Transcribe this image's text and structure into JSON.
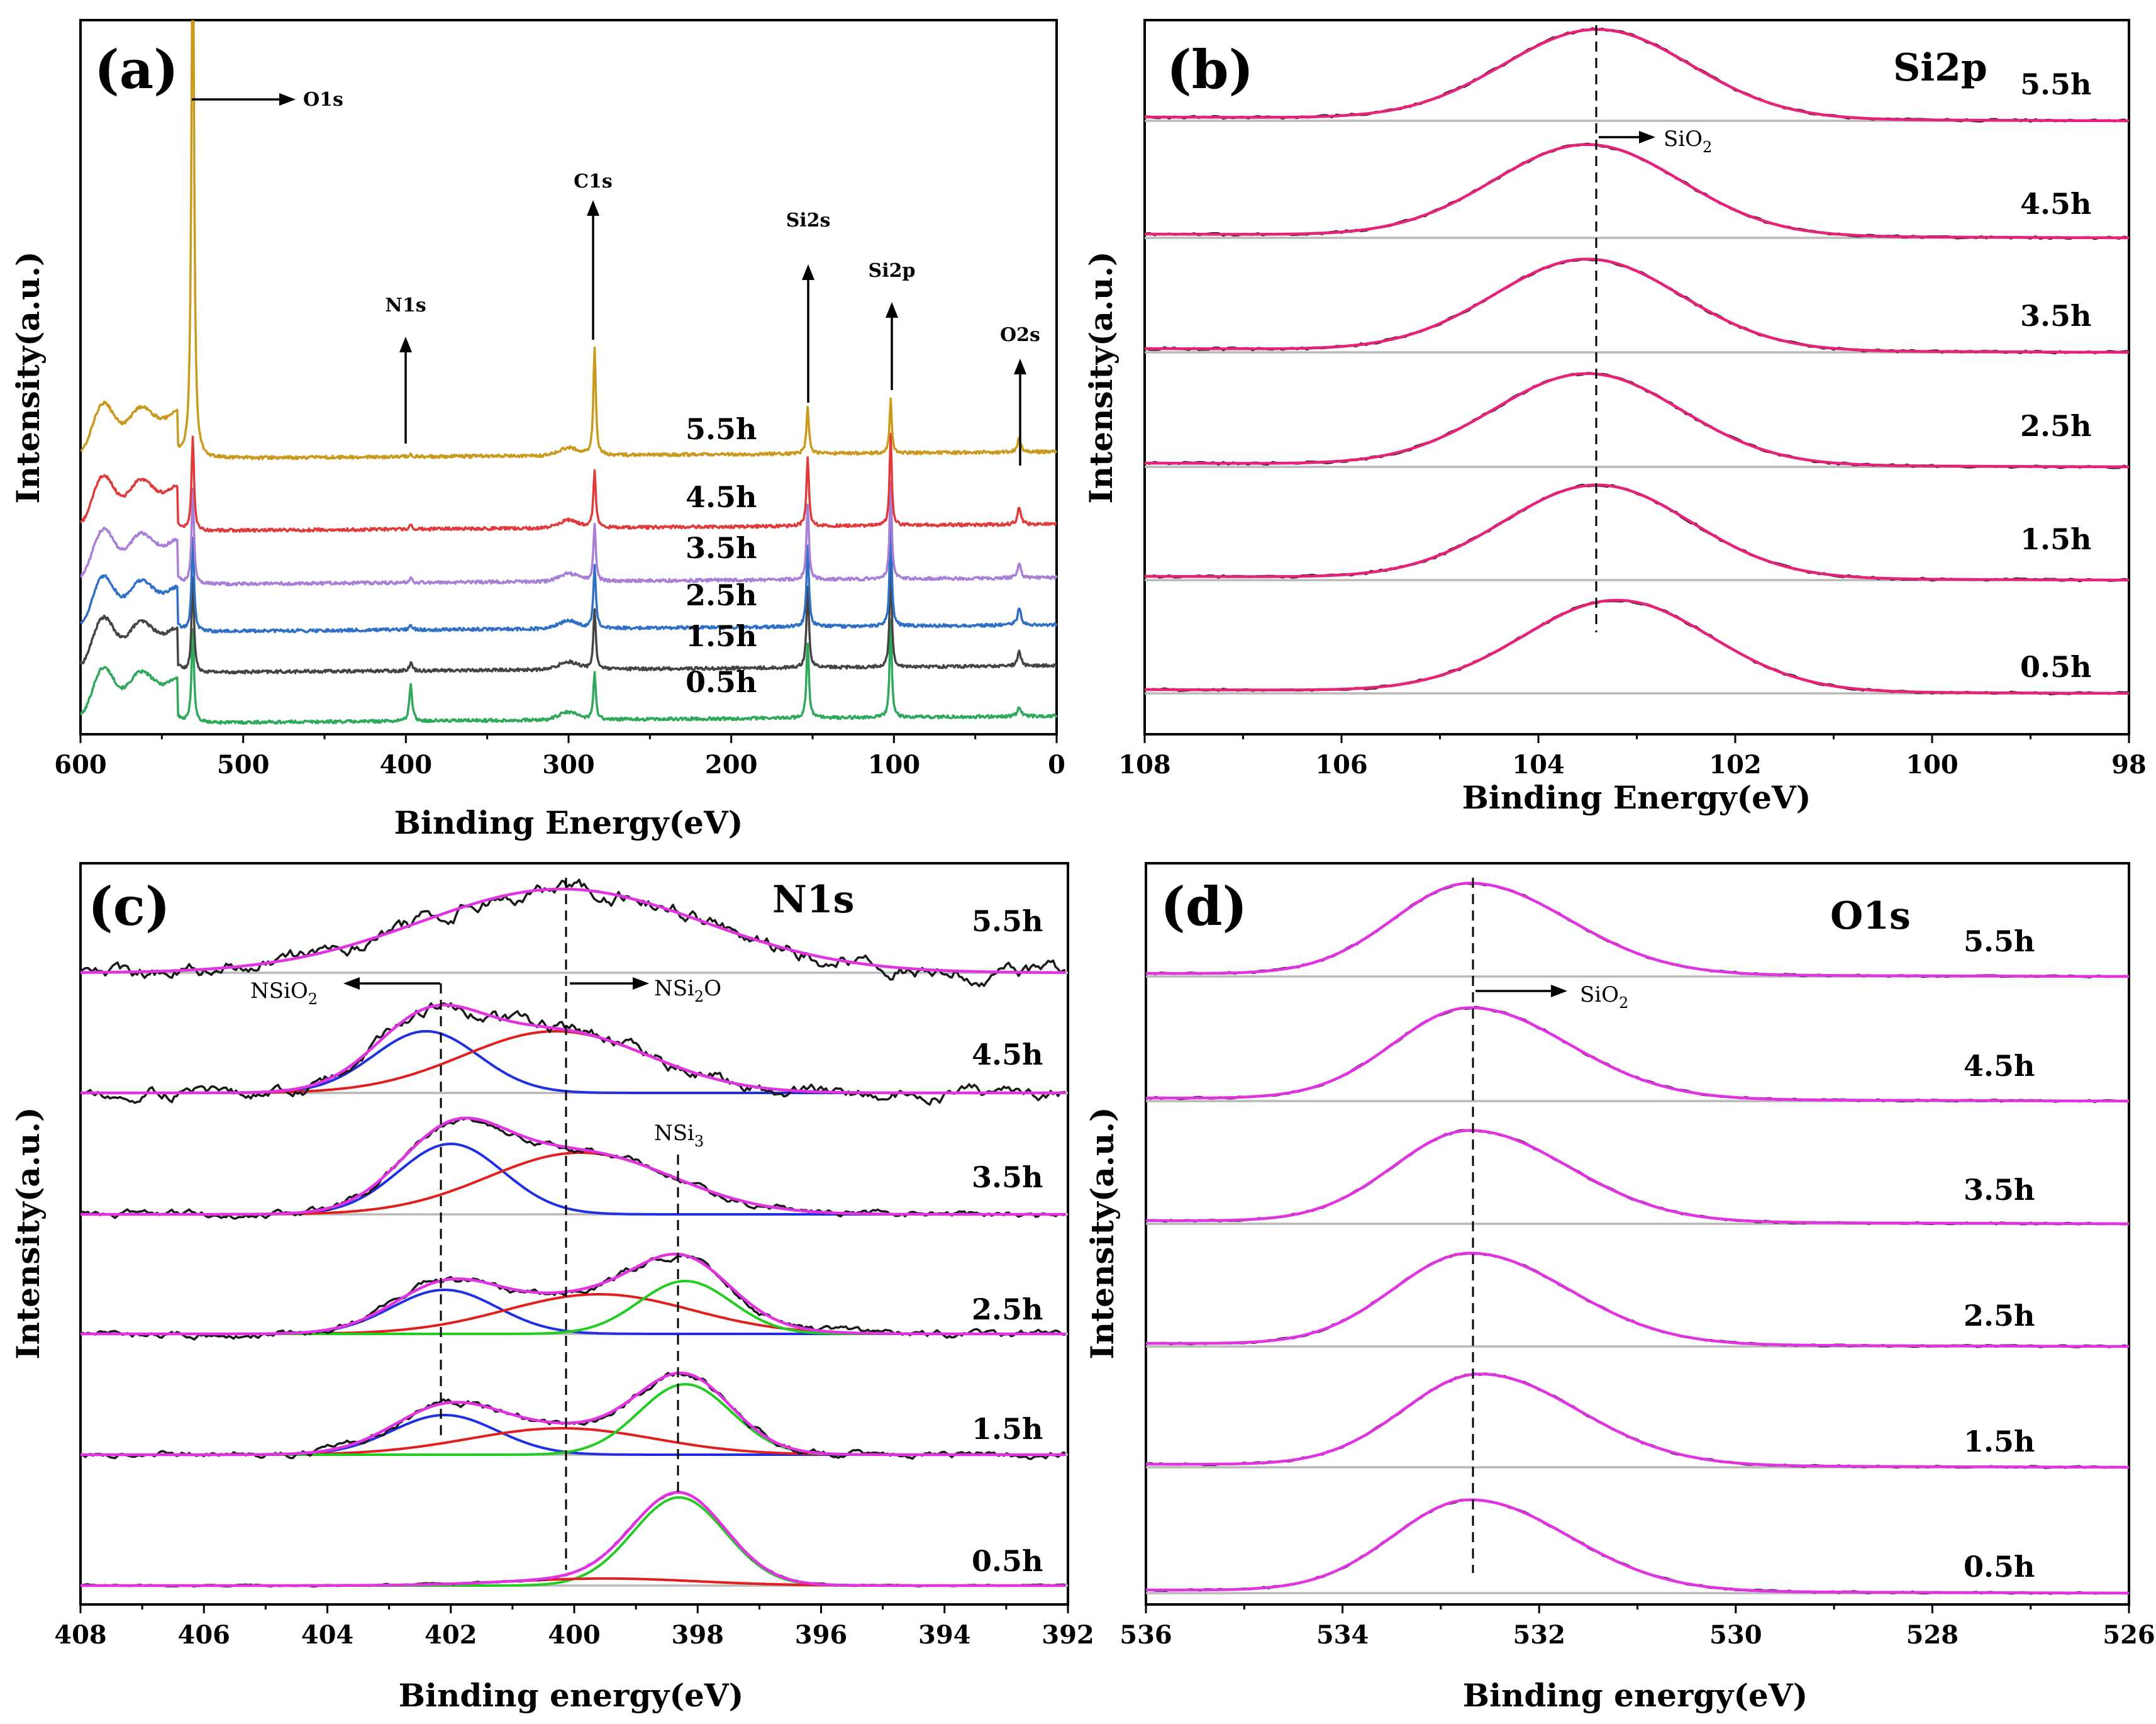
{
  "chart_data": [
    {
      "id": "a",
      "type": "line",
      "panel_label": "(a)",
      "xlabel": "Binding Energy(eV)",
      "ylabel": "Intensity(a.u.)",
      "xlim": [
        600,
        0
      ],
      "x_ticks": [
        "600",
        "500",
        "400",
        "300",
        "200",
        "100",
        "0"
      ],
      "series": [
        {
          "name": "0.5h",
          "color": "#2ea85a"
        },
        {
          "name": "1.5h",
          "color": "#444444"
        },
        {
          "name": "2.5h",
          "color": "#2f6fc6"
        },
        {
          "name": "3.5h",
          "color": "#a87ed6"
        },
        {
          "name": "4.5h",
          "color": "#e03a3a"
        },
        {
          "name": "5.5h",
          "color": "#c99a1e"
        }
      ],
      "peaks": [
        {
          "name": "O1s",
          "x": 531
        },
        {
          "name": "N1s",
          "x": 397
        },
        {
          "name": "C1s",
          "x": 284
        },
        {
          "name": "Si2s",
          "x": 153
        },
        {
          "name": "Si2p",
          "x": 102
        },
        {
          "name": "O2s",
          "x": 23
        }
      ],
      "annotations": [
        "O1s",
        "N1s",
        "C1s",
        "Si2s",
        "Si2p",
        "O2s"
      ]
    },
    {
      "id": "b",
      "type": "line",
      "panel_label": "(b)",
      "title": "Si2p",
      "xlabel": "Binding Energy(eV)",
      "ylabel": "Intensity(a.u.)",
      "xlim": [
        108,
        98
      ],
      "x_ticks": [
        "108",
        "106",
        "104",
        "102",
        "100",
        "98"
      ],
      "peak_center_ev": 103.4,
      "series": [
        {
          "name": "0.5h",
          "center": 103.2
        },
        {
          "name": "1.5h",
          "center": 103.4
        },
        {
          "name": "2.5h",
          "center": 103.5
        },
        {
          "name": "3.5h",
          "center": 103.5
        },
        {
          "name": "4.5h",
          "center": 103.5
        },
        {
          "name": "5.5h",
          "center": 103.4
        }
      ],
      "annotation": {
        "text": "SiO",
        "subscript": "2"
      }
    },
    {
      "id": "c",
      "type": "line",
      "panel_label": "(c)",
      "title": "N1s",
      "xlabel": "Binding energy(eV)",
      "ylabel": "Intensity(a.u.)",
      "xlim": [
        408,
        392
      ],
      "x_ticks": [
        "408",
        "406",
        "404",
        "402",
        "400",
        "398",
        "396",
        "394",
        "392"
      ],
      "component_centers_ev": {
        "NSiO2": 402.1,
        "NSi2O": 400.1,
        "NSi3": 398.3
      },
      "series": [
        {
          "name": "0.5h",
          "components": [
            {
              "color": "#22cc22",
              "center": 398.3,
              "amplitude": 1.0
            },
            {
              "color": "#e02020",
              "center": 399.5,
              "amplitude": 0.08
            }
          ]
        },
        {
          "name": "1.5h",
          "components": [
            {
              "color": "#2030e0",
              "center": 402.1,
              "amplitude": 0.45
            },
            {
              "color": "#e02020",
              "center": 400.2,
              "amplitude": 0.3
            },
            {
              "color": "#22cc22",
              "center": 398.2,
              "amplitude": 0.8
            }
          ]
        },
        {
          "name": "2.5h",
          "components": [
            {
              "color": "#2030e0",
              "center": 402.1,
              "amplitude": 0.5
            },
            {
              "color": "#e02020",
              "center": 399.6,
              "amplitude": 0.45
            },
            {
              "color": "#22cc22",
              "center": 398.2,
              "amplitude": 0.6
            }
          ]
        },
        {
          "name": "3.5h",
          "components": [
            {
              "color": "#2030e0",
              "center": 402.0,
              "amplitude": 0.8
            },
            {
              "color": "#e02020",
              "center": 399.9,
              "amplitude": 0.7
            }
          ]
        },
        {
          "name": "4.5h",
          "components": [
            {
              "color": "#2030e0",
              "center": 402.4,
              "amplitude": 0.7
            },
            {
              "color": "#e02020",
              "center": 400.3,
              "amplitude": 0.7
            }
          ]
        },
        {
          "name": "5.5h",
          "components": [
            {
              "color": "#e02020",
              "center": 400.2,
              "amplitude": 0.95
            }
          ]
        }
      ],
      "annotations": [
        {
          "text": "NSiO",
          "subscript": "2"
        },
        {
          "text": "NSi",
          "subscript": "2",
          "suffix": "O"
        },
        {
          "text": "NSi",
          "subscript": "3"
        }
      ]
    },
    {
      "id": "d",
      "type": "line",
      "panel_label": "(d)",
      "title": "O1s",
      "xlabel": "Binding energy(eV)",
      "ylabel": "Intensity(a.u.)",
      "xlim": [
        536,
        526
      ],
      "x_ticks": [
        "536",
        "534",
        "532",
        "530",
        "528",
        "526"
      ],
      "peak_center_ev": 532.7,
      "series": [
        {
          "name": "0.5h",
          "center": 532.7
        },
        {
          "name": "1.5h",
          "center": 532.6
        },
        {
          "name": "2.5h",
          "center": 532.7
        },
        {
          "name": "3.5h",
          "center": 532.7
        },
        {
          "name": "4.5h",
          "center": 532.7
        },
        {
          "name": "5.5h",
          "center": 532.7
        }
      ],
      "annotation": {
        "text": "SiO",
        "subscript": "2"
      }
    }
  ],
  "colors": {
    "raw": "#1a1a1a",
    "fit_b": "#e6237a",
    "fit_cd": "#e233e2",
    "baseline": "#b9b9b9",
    "nsio2": "#2030e0",
    "nsi2o": "#e02020",
    "nsi3": "#22cc22"
  }
}
